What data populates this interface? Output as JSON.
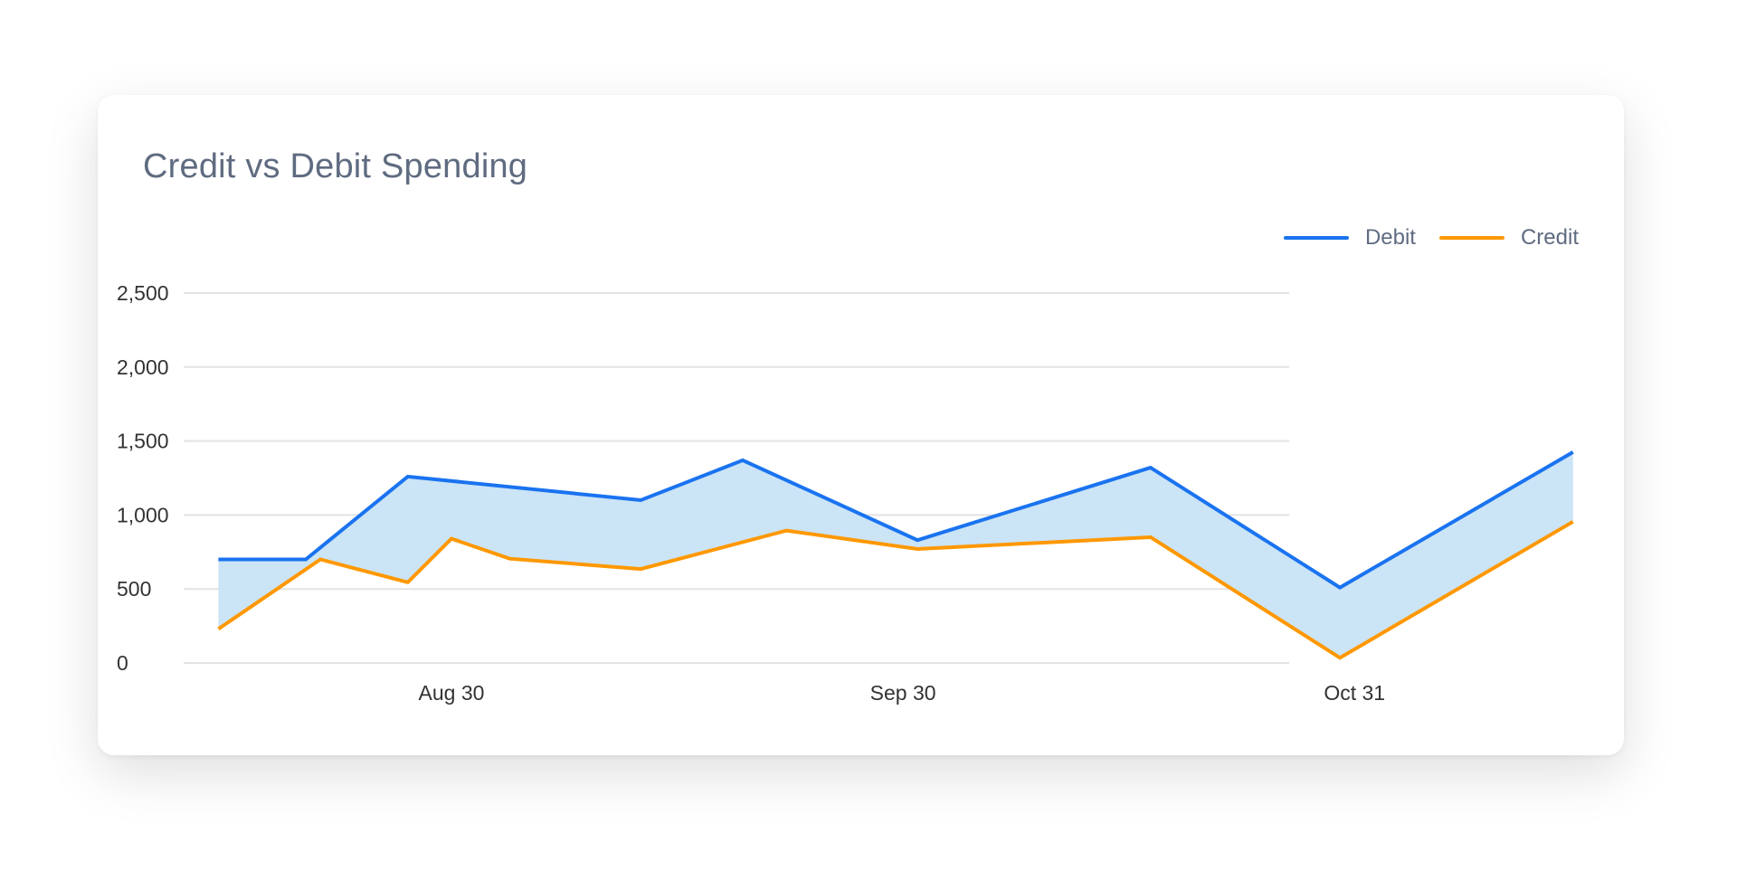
{
  "card": {
    "title": "Credit vs Debit Spending"
  },
  "legend": {
    "items": [
      {
        "label": "Debit",
        "color": "#1a73f0"
      },
      {
        "label": "Credit",
        "color": "#ff9800"
      }
    ]
  },
  "colors": {
    "debit": "#1a73f0",
    "credit": "#ff9800",
    "fill_between": "#c8e3f5",
    "grid": "#e3e3e3",
    "title": "#5f6b80"
  },
  "chart_data": {
    "type": "line",
    "title": "Credit vs Debit Spending",
    "xlabel": "",
    "ylabel": "",
    "ylim": [
      0,
      2500
    ],
    "yticks": [
      0,
      500,
      1000,
      1500,
      2000,
      2500
    ],
    "ytick_labels": [
      "0",
      "500",
      "1,000",
      "1,500",
      "2,000",
      "2,500"
    ],
    "xticks": [
      "Aug 30",
      "Sep 30",
      "Oct 31"
    ],
    "grid": true,
    "legend_position": "top-right",
    "fill_between": {
      "upper": "Debit",
      "lower": "Credit",
      "color": "#c8e3f5"
    },
    "series": [
      {
        "name": "Debit",
        "color": "#1a73f0",
        "x": [
          "Aug 14",
          "Aug 20",
          "Aug 27",
          "Sep 12",
          "Sep 19",
          "Oct 1",
          "Oct 17",
          "Oct 30",
          "Nov 15"
        ],
        "values": [
          700,
          700,
          1260,
          1100,
          1370,
          830,
          1320,
          510,
          1425
        ]
      },
      {
        "name": "Credit",
        "color": "#ff9800",
        "x": [
          "Aug 14",
          "Aug 21",
          "Aug 27",
          "Aug 30",
          "Sep 3",
          "Sep 12",
          "Sep 22",
          "Oct 1",
          "Oct 17",
          "Oct 30",
          "Nov 15"
        ],
        "values": [
          230,
          700,
          545,
          840,
          705,
          635,
          895,
          770,
          850,
          35,
          955
        ]
      }
    ]
  }
}
